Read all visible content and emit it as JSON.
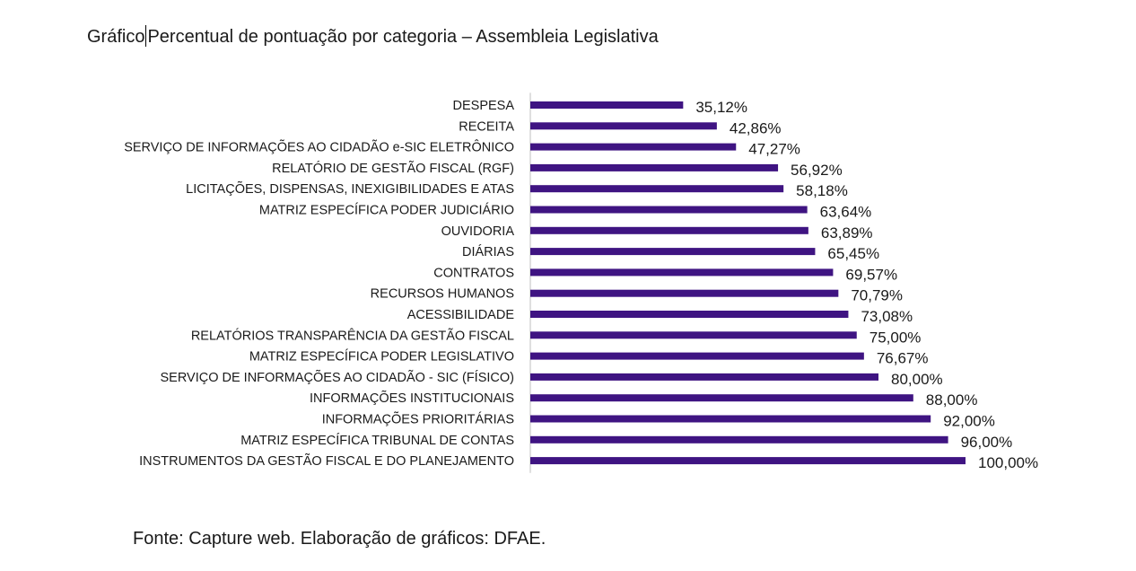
{
  "title": {
    "prefix": "Gráfico",
    "text": "Percentual de pontuação por categoria – Assembleia Legislativa"
  },
  "source": "Fonte: Capture web. Elaboração de gráficos: DFAE.",
  "colors": {
    "bar": "#3f1482",
    "axis": "#bfbfbf",
    "text": "#1a1a1a"
  },
  "chart_data": {
    "type": "bar",
    "orientation": "horizontal",
    "xlim": [
      0,
      100
    ],
    "grid": false,
    "categories": [
      "DESPESA",
      "RECEITA",
      "SERVIÇO DE INFORMAÇÕES AO CIDADÃO e-SIC ELETRÔNICO",
      "RELATÓRIO DE GESTÃO FISCAL (RGF)",
      "LICITAÇÕES, DISPENSAS, INEXIGIBILIDADES E ATAS",
      "MATRIZ ESPECÍFICA PODER JUDICIÁRIO",
      "OUVIDORIA",
      "DIÁRIAS",
      "CONTRATOS",
      "RECURSOS HUMANOS",
      "ACESSIBILIDADE",
      "RELATÓRIOS TRANSPARÊNCIA DA GESTÃO FISCAL",
      "MATRIZ ESPECÍFICA PODER LEGISLATIVO",
      "SERVIÇO DE INFORMAÇÕES AO CIDADÃO - SIC (FÍSICO)",
      "INFORMAÇÕES INSTITUCIONAIS",
      "INFORMAÇÕES PRIORITÁRIAS",
      "MATRIZ ESPECÍFICA TRIBUNAL DE CONTAS",
      "INSTRUMENTOS DA GESTÃO FISCAL E DO PLANEJAMENTO"
    ],
    "values": [
      35.12,
      42.86,
      47.27,
      56.92,
      58.18,
      63.64,
      63.89,
      65.45,
      69.57,
      70.79,
      73.08,
      75.0,
      76.67,
      80.0,
      88.0,
      92.0,
      96.0,
      100.0
    ],
    "data_labels": [
      "35,12%",
      "42,86%",
      "47,27%",
      "56,92%",
      "58,18%",
      "63,64%",
      "63,89%",
      "65,45%",
      "69,57%",
      "70,79%",
      "73,08%",
      "75,00%",
      "76,67%",
      "80,00%",
      "88,00%",
      "92,00%",
      "96,00%",
      "100,00%"
    ]
  }
}
